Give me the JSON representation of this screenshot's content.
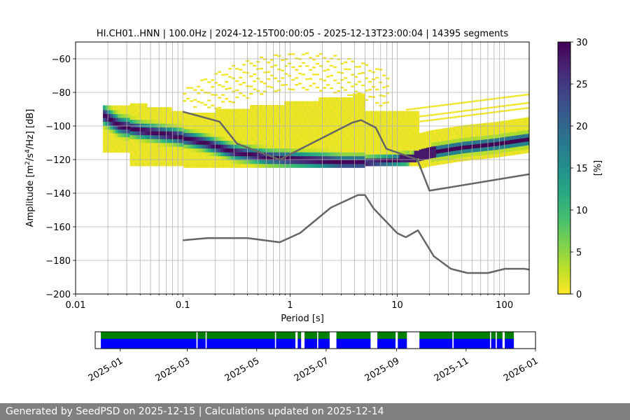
{
  "chart_data": [
    {
      "type": "heatmap",
      "title": "HI.CH01..HNN | 100.0Hz | 2024-12-15T00:00:05 - 2025-12-13T23:00:04 | 14395 segments",
      "xlabel": "Period [s]",
      "ylabel_parts": [
        "Amplitude [m",
        "2",
        "/s",
        "4",
        "/Hz] [dB]"
      ],
      "x_scale": "log",
      "xlim": [
        0.01,
        170
      ],
      "ylim": [
        -200,
        -50
      ],
      "x_ticks": [
        {
          "value": 0.01,
          "label": "0.01"
        },
        {
          "value": 0.1,
          "label": "0.1"
        },
        {
          "value": 1,
          "label": "1"
        },
        {
          "value": 10,
          "label": "10"
        },
        {
          "value": 100,
          "label": "100"
        }
      ],
      "y_ticks": [
        {
          "value": -60,
          "label": "−60"
        },
        {
          "value": -80,
          "label": "−80"
        },
        {
          "value": -100,
          "label": "−100"
        },
        {
          "value": -120,
          "label": "−120"
        },
        {
          "value": -140,
          "label": "−140"
        },
        {
          "value": -160,
          "label": "−160"
        },
        {
          "value": -180,
          "label": "−180"
        },
        {
          "value": -200,
          "label": "−200"
        }
      ],
      "grid": true,
      "colorbar": {
        "label": "[%]",
        "range": [
          0,
          30
        ],
        "colormap": "viridis_r",
        "ticks": [
          {
            "value": 0,
            "label": "0"
          },
          {
            "value": 5,
            "label": "5"
          },
          {
            "value": 10,
            "label": "10"
          },
          {
            "value": 15,
            "label": "15"
          },
          {
            "value": 20,
            "label": "20"
          },
          {
            "value": 25,
            "label": "25"
          },
          {
            "value": 30,
            "label": "30"
          }
        ]
      },
      "psd_mode": [
        [
          0.018,
          -92
        ],
        [
          0.025,
          -98
        ],
        [
          0.04,
          -101
        ],
        [
          0.08,
          -104
        ],
        [
          0.15,
          -108
        ],
        [
          0.3,
          -114
        ],
        [
          0.6,
          -117
        ],
        [
          1.0,
          -118
        ],
        [
          2.0,
          -119
        ],
        [
          3.0,
          -120
        ],
        [
          5.0,
          -120
        ],
        [
          8.0,
          -119
        ],
        [
          12.0,
          -118
        ],
        [
          15.0,
          -116
        ],
        [
          20.0,
          -114
        ],
        [
          40.0,
          -111
        ],
        [
          80.0,
          -109
        ],
        [
          170.0,
          -106
        ]
      ],
      "noise_models": [
        {
          "name": "high noise model",
          "color": "#666666",
          "points": [
            [
              0.1,
              -91.5
            ],
            [
              0.22,
              -97.4
            ],
            [
              0.32,
              -110.5
            ],
            [
              0.8,
              -120
            ],
            [
              3.8,
              -98
            ],
            [
              4.6,
              -96.5
            ],
            [
              6.3,
              -101
            ],
            [
              7.9,
              -113.5
            ],
            [
              15.4,
              -120
            ],
            [
              20,
              -138.5
            ],
            [
              170,
              -128.7
            ]
          ]
        },
        {
          "name": "low noise model",
          "color": "#666666",
          "points": [
            [
              0.1,
              -168
            ],
            [
              0.17,
              -166.7
            ],
            [
              0.4,
              -166.7
            ],
            [
              0.8,
              -169.2
            ],
            [
              1.24,
              -163.7
            ],
            [
              2.4,
              -148.6
            ],
            [
              4.3,
              -141.1
            ],
            [
              5.0,
              -141.1
            ],
            [
              6.0,
              -149
            ],
            [
              10.0,
              -163.8
            ],
            [
              12.0,
              -166.2
            ],
            [
              15.6,
              -162.1
            ],
            [
              21.9,
              -177.5
            ],
            [
              31.6,
              -185
            ],
            [
              45,
              -187.5
            ],
            [
              70,
              -187.5
            ],
            [
              101,
              -185
            ],
            [
              154,
              -185
            ],
            [
              170,
              -185.5
            ]
          ]
        }
      ]
    },
    {
      "type": "timeline",
      "x_axis": "date",
      "xlim": [
        "2024-12-10",
        "2026-01-01"
      ],
      "x_ticks": [
        "2025-01",
        "2025-03",
        "2025-05",
        "2025-07",
        "2025-09",
        "2025-11",
        "2026-01"
      ],
      "series": [
        {
          "color": "#008000",
          "intervals": [
            [
              "2024-12-15",
              "2025-03-09"
            ],
            [
              "2025-03-10",
              "2025-03-17"
            ],
            [
              "2025-03-18",
              "2025-05-17"
            ],
            [
              "2025-05-18",
              "2025-06-04"
            ],
            [
              "2025-06-06",
              "2025-06-09"
            ],
            [
              "2025-06-12",
              "2025-06-23"
            ],
            [
              "2025-06-24",
              "2025-07-04"
            ],
            [
              "2025-07-10",
              "2025-08-09"
            ],
            [
              "2025-08-15",
              "2025-08-31"
            ],
            [
              "2025-09-02",
              "2025-09-10"
            ],
            [
              "2025-09-21",
              "2025-10-20"
            ],
            [
              "2025-10-21",
              "2025-11-22"
            ],
            [
              "2025-11-23",
              "2025-11-27"
            ],
            [
              "2025-11-28",
              "2025-12-03"
            ],
            [
              "2025-12-05",
              "2025-12-13"
            ]
          ]
        },
        {
          "color": "#0000ff",
          "intervals": [
            [
              "2024-12-15",
              "2025-03-09"
            ],
            [
              "2025-03-10",
              "2025-03-17"
            ],
            [
              "2025-03-18",
              "2025-05-17"
            ],
            [
              "2025-05-18",
              "2025-06-04"
            ],
            [
              "2025-06-06",
              "2025-06-09"
            ],
            [
              "2025-06-12",
              "2025-06-23"
            ],
            [
              "2025-06-24",
              "2025-07-04"
            ],
            [
              "2025-07-10",
              "2025-08-09"
            ],
            [
              "2025-08-15",
              "2025-08-31"
            ],
            [
              "2025-09-02",
              "2025-09-10"
            ],
            [
              "2025-09-21",
              "2025-10-20"
            ],
            [
              "2025-10-21",
              "2025-11-22"
            ],
            [
              "2025-11-23",
              "2025-11-27"
            ],
            [
              "2025-11-28",
              "2025-12-03"
            ],
            [
              "2025-12-05",
              "2025-12-13"
            ]
          ]
        }
      ]
    }
  ],
  "footer": "Generated by SeedPSD on 2025-12-15 | Calculations updated on 2025-12-14"
}
